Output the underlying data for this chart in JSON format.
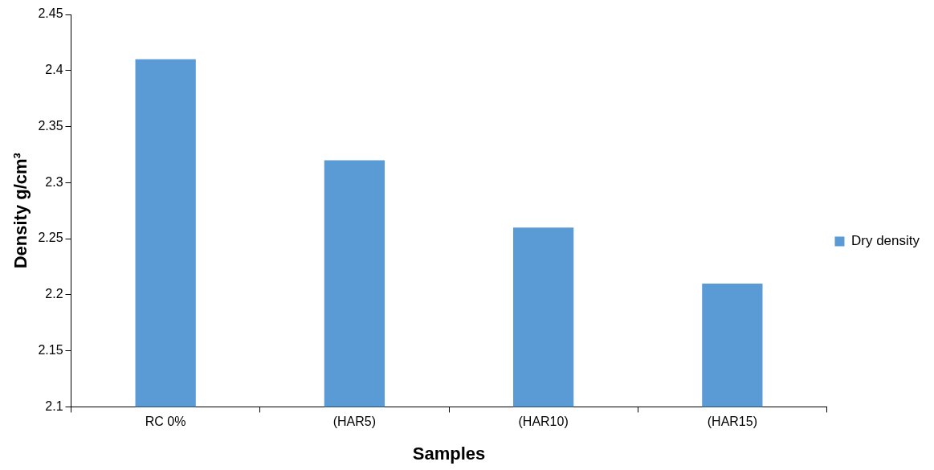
{
  "chart_data": {
    "type": "bar",
    "xlabel": "Samples",
    "ylabel": "Density g/cm³",
    "categories": [
      "RC 0%",
      "(HAR5)",
      "(HAR10)",
      "(HAR15)"
    ],
    "series": [
      {
        "name": "Dry density",
        "color": "#5b9bd5",
        "values": [
          2.41,
          2.32,
          2.26,
          2.21
        ]
      }
    ],
    "ylim": [
      2.1,
      2.45
    ],
    "yticks": [
      2.1,
      2.15,
      2.2,
      2.25,
      2.3,
      2.35,
      2.4,
      2.45
    ],
    "legend": "right"
  }
}
